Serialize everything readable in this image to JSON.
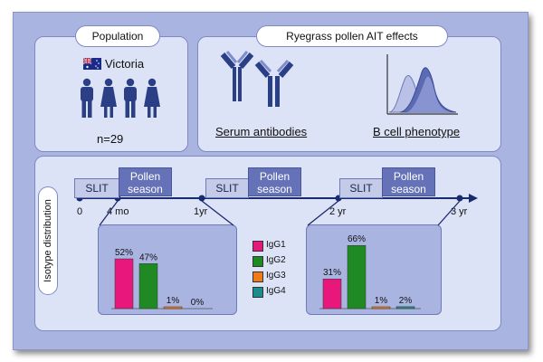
{
  "population": {
    "title": "Population",
    "location": "Victoria",
    "n": "n=29"
  },
  "effects": {
    "title": "Ryegrass pollen AIT effects",
    "serum_label": "Serum antibodies",
    "bcell_label": "B cell phenotype"
  },
  "isotype_label": "Isotype distribution",
  "timeline": {
    "blocks": [
      {
        "slit": "SLIT",
        "pollen": "Pollen season"
      },
      {
        "slit": "SLIT",
        "pollen": "Pollen season"
      },
      {
        "slit": "SLIT",
        "pollen": "Pollen season"
      }
    ],
    "ticks": [
      "0",
      "4 mo",
      "1yr",
      "2 yr",
      "3 yr"
    ]
  },
  "colors": {
    "IgG1": "#e8177c",
    "IgG2": "#1f8a23",
    "IgG3": "#f07a1a",
    "IgG4": "#1f8c8c"
  },
  "icons": [
    "australia-flag-icon",
    "person-icon",
    "antibody-icon",
    "flow-histogram-icon"
  ],
  "chart_data": [
    {
      "type": "bar",
      "categories": [
        "IgG1",
        "IgG2",
        "IgG3",
        "IgG4"
      ],
      "values": [
        52,
        47,
        1,
        0
      ],
      "labels": [
        "52%",
        "47%",
        "1%",
        "0%"
      ],
      "ylim": [
        0,
        70
      ]
    },
    {
      "type": "bar",
      "categories": [
        "IgG1",
        "IgG2",
        "IgG3",
        "IgG4"
      ],
      "values": [
        31,
        66,
        1,
        2
      ],
      "labels": [
        "31%",
        "66%",
        "1%",
        "2%"
      ],
      "ylim": [
        0,
        70
      ]
    }
  ],
  "legend": [
    "IgG1",
    "IgG2",
    "IgG3",
    "IgG4"
  ]
}
